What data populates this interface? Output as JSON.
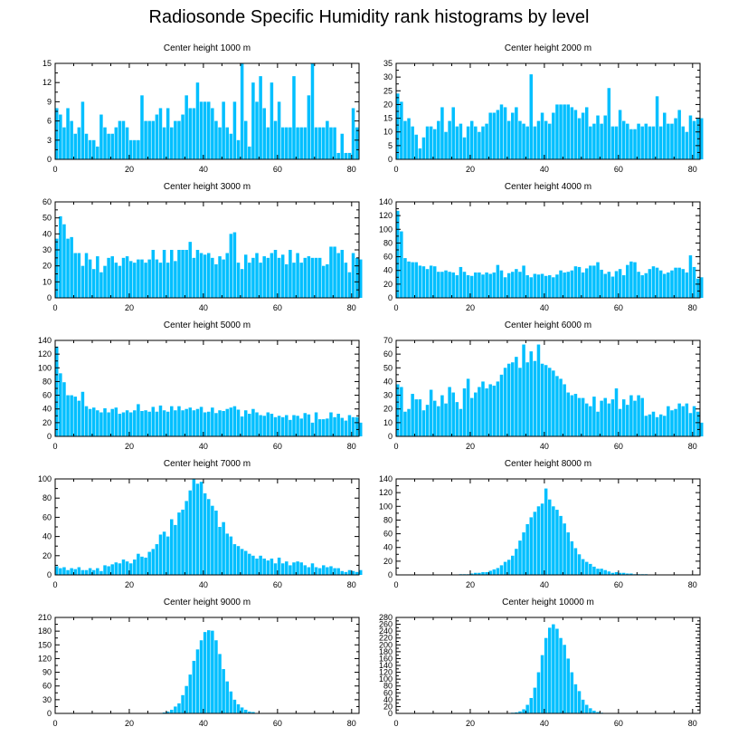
{
  "title": "Radiosonde Specific Humidity rank histograms by level",
  "bar_color": "#00BFFF",
  "chart_data": [
    {
      "type": "bar",
      "title": "Center height 1000 m",
      "xlim": [
        0,
        82
      ],
      "ylim": [
        0,
        15
      ],
      "xticks": [
        0,
        20,
        40,
        60,
        80
      ],
      "yticks": [
        0,
        3,
        6,
        9,
        12,
        15
      ],
      "values": [
        8,
        7,
        5,
        8,
        6,
        4,
        5,
        9,
        4,
        3,
        3,
        2,
        7,
        5,
        4,
        4,
        5,
        6,
        6,
        5,
        3,
        3,
        3,
        10,
        6,
        6,
        6,
        7,
        8,
        5,
        8,
        5,
        6,
        6,
        7,
        10,
        8,
        8,
        12,
        9,
        9,
        9,
        8,
        6,
        5,
        9,
        5,
        4,
        9,
        3,
        15,
        6,
        2,
        12,
        9,
        13,
        8,
        5,
        12,
        6,
        9,
        5,
        5,
        5,
        13,
        5,
        5,
        5,
        10,
        15,
        5,
        5,
        5,
        6,
        5,
        5,
        1,
        4,
        1,
        1,
        8,
        5,
        0
      ]
    },
    {
      "type": "bar",
      "title": "Center height 2000 m",
      "xlim": [
        0,
        82
      ],
      "ylim": [
        0,
        35
      ],
      "xticks": [
        0,
        20,
        40,
        60,
        80
      ],
      "yticks": [
        0,
        5,
        10,
        15,
        20,
        25,
        30,
        35
      ],
      "values": [
        24,
        21,
        14,
        15,
        12,
        9,
        4,
        8,
        12,
        12,
        11,
        14,
        19,
        10,
        14,
        19,
        12,
        13,
        8,
        12,
        14,
        12,
        10,
        12,
        13,
        17,
        17,
        18,
        20,
        19,
        14,
        17,
        19,
        14,
        13,
        12,
        31,
        12,
        14,
        17,
        14,
        13,
        17,
        20,
        20,
        20,
        20,
        19,
        18,
        15,
        17,
        19,
        12,
        13,
        16,
        13,
        16,
        26,
        12,
        12,
        18,
        14,
        13,
        11,
        11,
        13,
        12,
        13,
        12,
        12,
        23,
        12,
        17,
        13,
        13,
        15,
        18,
        12,
        10,
        16,
        14,
        15,
        15
      ]
    },
    {
      "type": "bar",
      "title": "Center height 3000 m",
      "xlim": [
        0,
        82
      ],
      "ylim": [
        0,
        60
      ],
      "xticks": [
        0,
        20,
        40,
        60,
        80
      ],
      "yticks": [
        0,
        10,
        20,
        30,
        40,
        50,
        60
      ],
      "values": [
        37,
        51,
        46,
        37,
        38,
        28,
        28,
        20,
        28,
        24,
        18,
        26,
        16,
        20,
        25,
        26,
        22,
        20,
        25,
        26,
        23,
        22,
        24,
        24,
        22,
        24,
        30,
        24,
        22,
        30,
        22,
        30,
        23,
        30,
        30,
        30,
        35,
        25,
        30,
        28,
        27,
        28,
        25,
        21,
        26,
        24,
        28,
        40,
        41,
        22,
        18,
        27,
        22,
        25,
        28,
        22,
        26,
        25,
        28,
        30,
        25,
        27,
        21,
        30,
        22,
        28,
        22,
        25,
        26,
        25,
        25,
        25,
        20,
        21,
        32,
        32,
        28,
        30,
        22,
        16,
        28,
        25,
        24
      ]
    },
    {
      "type": "bar",
      "title": "Center height 4000 m",
      "xlim": [
        0,
        82
      ],
      "ylim": [
        0,
        140
      ],
      "xticks": [
        0,
        20,
        40,
        60,
        80
      ],
      "yticks": [
        0,
        20,
        40,
        60,
        80,
        100,
        120,
        140
      ],
      "values": [
        127,
        97,
        58,
        53,
        52,
        52,
        47,
        46,
        42,
        47,
        46,
        38,
        38,
        40,
        38,
        37,
        33,
        45,
        38,
        33,
        32,
        37,
        37,
        34,
        37,
        35,
        37,
        48,
        40,
        30,
        36,
        38,
        42,
        38,
        47,
        33,
        30,
        35,
        34,
        35,
        32,
        33,
        30,
        34,
        40,
        37,
        38,
        40,
        46,
        45,
        37,
        43,
        47,
        47,
        52,
        41,
        35,
        38,
        31,
        39,
        42,
        33,
        48,
        53,
        52,
        38,
        33,
        36,
        42,
        46,
        44,
        40,
        35,
        37,
        40,
        44,
        44,
        42,
        37,
        62,
        45,
        28,
        30
      ]
    },
    {
      "type": "bar",
      "title": "Center height 5000 m",
      "xlim": [
        0,
        82
      ],
      "ylim": [
        0,
        140
      ],
      "xticks": [
        0,
        20,
        40,
        60,
        80
      ],
      "yticks": [
        0,
        20,
        40,
        60,
        80,
        100,
        120,
        140
      ],
      "values": [
        131,
        92,
        79,
        60,
        60,
        58,
        52,
        65,
        44,
        40,
        42,
        38,
        35,
        41,
        35,
        40,
        42,
        33,
        35,
        38,
        35,
        38,
        47,
        37,
        38,
        36,
        43,
        36,
        45,
        38,
        36,
        44,
        38,
        44,
        38,
        40,
        42,
        38,
        40,
        43,
        35,
        36,
        42,
        34,
        38,
        37,
        40,
        42,
        44,
        39,
        29,
        38,
        33,
        40,
        35,
        31,
        30,
        35,
        33,
        28,
        30,
        28,
        31,
        24,
        31,
        30,
        26,
        34,
        32,
        20,
        35,
        25,
        25,
        26,
        35,
        28,
        33,
        27,
        23,
        31,
        28,
        28,
        20
      ]
    },
    {
      "type": "bar",
      "title": "Center height 6000 m",
      "xlim": [
        0,
        82
      ],
      "ylim": [
        0,
        70
      ],
      "xticks": [
        0,
        20,
        40,
        60,
        80
      ],
      "yticks": [
        0,
        10,
        20,
        30,
        40,
        50,
        60,
        70
      ],
      "values": [
        38,
        36,
        18,
        20,
        31,
        27,
        27,
        19,
        23,
        34,
        26,
        22,
        30,
        24,
        36,
        32,
        25,
        20,
        35,
        42,
        28,
        32,
        36,
        40,
        35,
        38,
        37,
        40,
        45,
        50,
        53,
        54,
        58,
        50,
        67,
        54,
        62,
        55,
        67,
        53,
        52,
        50,
        48,
        44,
        42,
        38,
        32,
        30,
        31,
        28,
        28,
        24,
        22,
        29,
        18,
        26,
        28,
        24,
        27,
        35,
        20,
        27,
        23,
        30,
        26,
        30,
        28,
        15,
        16,
        18,
        14,
        16,
        15,
        22,
        19,
        20,
        24,
        22,
        24,
        17,
        22,
        18,
        10
      ]
    },
    {
      "type": "bar",
      "title": "Center height 7000 m",
      "xlim": [
        0,
        82
      ],
      "ylim": [
        0,
        100
      ],
      "xticks": [
        0,
        20,
        40,
        60,
        80
      ],
      "yticks": [
        0,
        20,
        40,
        60,
        80,
        100
      ],
      "values": [
        9,
        7,
        8,
        5,
        7,
        6,
        8,
        5,
        5,
        7,
        5,
        7,
        4,
        10,
        9,
        11,
        13,
        12,
        16,
        14,
        12,
        16,
        22,
        19,
        18,
        24,
        27,
        32,
        42,
        45,
        40,
        58,
        52,
        65,
        68,
        77,
        88,
        100,
        95,
        97,
        85,
        79,
        72,
        67,
        50,
        55,
        43,
        40,
        32,
        30,
        27,
        25,
        22,
        20,
        17,
        20,
        17,
        15,
        17,
        12,
        18,
        12,
        14,
        10,
        13,
        14,
        13,
        10,
        8,
        12,
        8,
        7,
        10,
        8,
        9,
        7,
        7,
        4,
        3,
        5,
        4,
        3,
        5
      ]
    },
    {
      "type": "bar",
      "title": "Center height 8000 m",
      "xlim": [
        0,
        82
      ],
      "ylim": [
        0,
        140
      ],
      "xticks": [
        0,
        20,
        40,
        60,
        80
      ],
      "yticks": [
        0,
        20,
        40,
        60,
        80,
        100,
        120,
        140
      ],
      "values": [
        0,
        0,
        0,
        0,
        0,
        0,
        0,
        0,
        0,
        0,
        0,
        0,
        0,
        0,
        0,
        0,
        0,
        1,
        1,
        1,
        2,
        3,
        3,
        4,
        4,
        6,
        8,
        10,
        14,
        19,
        22,
        28,
        38,
        50,
        62,
        74,
        84,
        92,
        100,
        104,
        126,
        110,
        100,
        95,
        86,
        75,
        62,
        49,
        39,
        30,
        23,
        19,
        16,
        12,
        9,
        9,
        7,
        5,
        3,
        4,
        3,
        3,
        2,
        2,
        1,
        1,
        1,
        1,
        0,
        0,
        0,
        0,
        0,
        0,
        0,
        0,
        0,
        0,
        0,
        0,
        0,
        0,
        0
      ]
    },
    {
      "type": "bar",
      "title": "Center height 9000 m",
      "xlim": [
        0,
        82
      ],
      "ylim": [
        0,
        210
      ],
      "xticks": [
        0,
        20,
        40,
        60,
        80
      ],
      "yticks": [
        0,
        30,
        60,
        90,
        120,
        150,
        180,
        210
      ],
      "values": [
        0,
        0,
        0,
        0,
        0,
        0,
        0,
        0,
        0,
        0,
        0,
        0,
        0,
        0,
        0,
        0,
        0,
        0,
        0,
        0,
        0,
        0,
        0,
        0,
        0,
        0,
        0,
        0,
        1,
        2,
        4,
        8,
        15,
        22,
        40,
        60,
        85,
        115,
        140,
        160,
        178,
        182,
        181,
        160,
        130,
        97,
        70,
        48,
        30,
        20,
        13,
        8,
        4,
        3,
        1,
        1,
        0,
        0,
        0,
        0,
        0,
        0,
        0,
        0,
        0,
        0,
        0,
        0,
        0,
        0,
        0,
        0,
        0,
        0,
        0,
        0,
        0,
        0,
        0,
        0,
        0,
        0,
        0
      ]
    },
    {
      "type": "bar",
      "title": "Center height 10000 m",
      "xlim": [
        0,
        82
      ],
      "ylim": [
        0,
        280
      ],
      "xticks": [
        0,
        20,
        40,
        60,
        80
      ],
      "yticks": [
        0,
        20,
        40,
        60,
        80,
        100,
        120,
        140,
        160,
        180,
        200,
        220,
        240,
        260,
        280
      ],
      "values": [
        0,
        0,
        0,
        0,
        0,
        0,
        0,
        0,
        0,
        0,
        0,
        0,
        0,
        0,
        0,
        0,
        0,
        0,
        0,
        0,
        0,
        0,
        0,
        0,
        0,
        0,
        0,
        0,
        0,
        0,
        1,
        2,
        3,
        6,
        12,
        25,
        45,
        75,
        120,
        170,
        220,
        250,
        260,
        247,
        220,
        200,
        160,
        120,
        85,
        65,
        40,
        25,
        15,
        8,
        4,
        2,
        1,
        0,
        0,
        0,
        0,
        0,
        0,
        0,
        0,
        0,
        0,
        0,
        0,
        0,
        0,
        0,
        0,
        0,
        0,
        0,
        0,
        0,
        0,
        0,
        0,
        0,
        0
      ]
    }
  ]
}
